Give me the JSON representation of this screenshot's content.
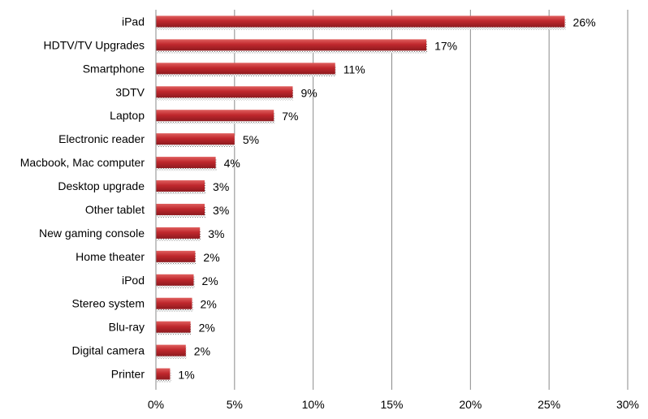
{
  "chart_data": {
    "type": "bar",
    "orientation": "horizontal",
    "categories": [
      "iPad",
      "HDTV/TV Upgrades",
      "Smartphone",
      "3DTV",
      "Laptop",
      "Electronic reader",
      "Macbook, Mac computer",
      "Desktop upgrade",
      "Other tablet",
      "New gaming console",
      "Home theater",
      "iPod",
      "Stereo system",
      "Blu-ray",
      "Digital camera",
      "Printer"
    ],
    "values": [
      26,
      17.2,
      11.4,
      8.7,
      7.5,
      5,
      3.8,
      3.1,
      3.1,
      2.8,
      2.5,
      2.4,
      2.3,
      2.2,
      1.9,
      0.9
    ],
    "data_labels": [
      "26%",
      "17%",
      "11%",
      "9%",
      "7%",
      "5%",
      "4%",
      "3%",
      "3%",
      "3%",
      "2%",
      "2%",
      "2%",
      "2%",
      "2%",
      "1%"
    ],
    "xticks": [
      0,
      5,
      10,
      15,
      20,
      25,
      30
    ],
    "xtick_labels": [
      "0%",
      "5%",
      "10%",
      "15%",
      "20%",
      "25%",
      "30%"
    ],
    "xlim": [
      0,
      30
    ],
    "grid": "vertical",
    "legend": "none",
    "bar_color": "#c0282d",
    "xlabel": "",
    "ylabel": "",
    "title": ""
  }
}
